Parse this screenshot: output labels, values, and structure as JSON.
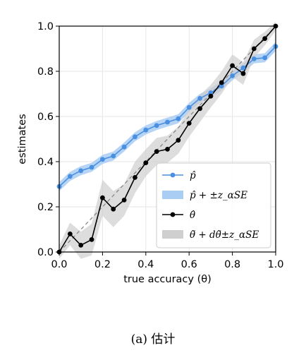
{
  "chart_data": {
    "type": "line",
    "xlabel": "true accuracy (θ)",
    "ylabel": "estimates",
    "xlim": [
      0.0,
      1.0
    ],
    "ylim": [
      0.0,
      1.0
    ],
    "xticks": [
      0.0,
      0.2,
      0.4,
      0.6,
      0.8,
      1.0
    ],
    "yticks": [
      0.0,
      0.2,
      0.4,
      0.6,
      0.8,
      1.0
    ],
    "xtick_labels": [
      "0.0",
      "0.2",
      "0.4",
      "0.6",
      "0.8",
      "1.0"
    ],
    "ytick_labels": [
      "0.0",
      "0.2",
      "0.4",
      "0.6",
      "0.8",
      "1.0"
    ],
    "grid": true,
    "legend_position": "lower-right",
    "x": [
      0.0,
      0.05,
      0.1,
      0.15,
      0.2,
      0.25,
      0.3,
      0.35,
      0.4,
      0.45,
      0.5,
      0.55,
      0.6,
      0.65,
      0.7,
      0.75,
      0.8,
      0.85,
      0.9,
      0.95,
      1.0
    ],
    "series": [
      {
        "name": "p̂",
        "color": "#4a90e2",
        "values": [
          0.29,
          0.335,
          0.36,
          0.375,
          0.41,
          0.425,
          0.465,
          0.51,
          0.54,
          0.56,
          0.575,
          0.59,
          0.64,
          0.68,
          0.705,
          0.735,
          0.78,
          0.815,
          0.855,
          0.86,
          0.91
        ],
        "band": {
          "name": "p̂ + ±z_αSE",
          "color": "#a9cdf3",
          "halfwidth": 0.02
        }
      },
      {
        "name": "θ̂",
        "color": "#000000",
        "values": [
          0.0,
          0.08,
          0.03,
          0.055,
          0.24,
          0.19,
          0.23,
          0.33,
          0.395,
          0.445,
          0.455,
          0.495,
          0.57,
          0.635,
          0.69,
          0.75,
          0.825,
          0.79,
          0.9,
          0.945,
          1.0
        ],
        "band": {
          "name": "θ̃ + dθ̃±z_αSE",
          "color": "#cfcfcf",
          "halfwidth": [
            0.03,
            0.05,
            0.06,
            0.07,
            0.08,
            0.08,
            0.07,
            0.07,
            0.06,
            0.06,
            0.06,
            0.06,
            0.06,
            0.06,
            0.05,
            0.05,
            0.05,
            0.05,
            0.04,
            0.03,
            0.02
          ]
        }
      }
    ],
    "reference_line": {
      "style": "dashed",
      "color": "#888888",
      "from": [
        0.0,
        0.0
      ],
      "to": [
        1.0,
        1.0
      ]
    }
  },
  "legend": {
    "items": [
      {
        "label": "p̂",
        "kind": "line-marker",
        "color": "#4a90e2"
      },
      {
        "label": "p̂ + ±z_αSE",
        "kind": "patch",
        "color": "#a9cdf3"
      },
      {
        "label": "θ̂",
        "kind": "line-marker",
        "color": "#000000"
      },
      {
        "label": "θ̃ + dθ̃±z_αSE",
        "kind": "patch",
        "color": "#cfcfcf"
      }
    ]
  },
  "caption": "(a) 估计"
}
